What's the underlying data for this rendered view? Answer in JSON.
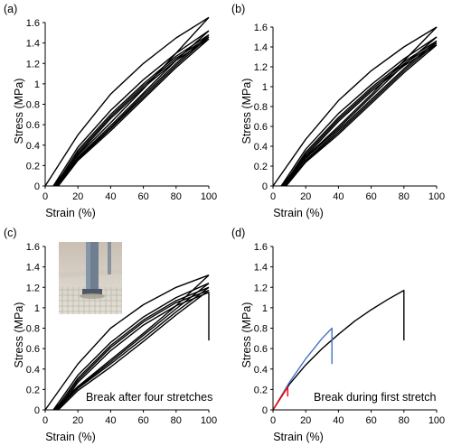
{
  "chart_data": [
    {
      "type": "line",
      "panel_label": "(a)",
      "xlabel": "Strain (%)",
      "ylabel": "Stress (MPa)",
      "xlim": [
        0,
        100
      ],
      "ylim": [
        0,
        1.6
      ],
      "xticks": [
        "0",
        "20",
        "40",
        "60",
        "80",
        "100"
      ],
      "yticks": [
        "0",
        "0.2",
        "0.4",
        "0.6",
        "0.8",
        "1",
        "1.2",
        "1.4",
        "1.6"
      ],
      "grid": false,
      "annotation": "",
      "series": [
        {
          "color": "#000000",
          "x": [
            0,
            20,
            40,
            60,
            80,
            100
          ],
          "y": [
            0,
            0.5,
            0.9,
            1.2,
            1.45,
            1.65
          ]
        },
        {
          "color": "#000000",
          "x": [
            100,
            80,
            60,
            40,
            20,
            5
          ],
          "y": [
            1.65,
            1.3,
            0.95,
            0.62,
            0.3,
            0
          ]
        },
        {
          "color": "#000000",
          "x": [
            5,
            20,
            40,
            60,
            80,
            100
          ],
          "y": [
            0,
            0.38,
            0.74,
            1.04,
            1.3,
            1.52
          ]
        },
        {
          "color": "#000000",
          "x": [
            100,
            80,
            60,
            40,
            20,
            6
          ],
          "y": [
            1.52,
            1.23,
            0.91,
            0.59,
            0.28,
            0
          ]
        },
        {
          "color": "#000000",
          "x": [
            6,
            20,
            40,
            60,
            80,
            100
          ],
          "y": [
            0,
            0.35,
            0.7,
            1.0,
            1.27,
            1.48
          ]
        },
        {
          "color": "#000000",
          "x": [
            100,
            80,
            60,
            40,
            20,
            7
          ],
          "y": [
            1.48,
            1.2,
            0.89,
            0.57,
            0.27,
            0
          ]
        },
        {
          "color": "#000000",
          "x": [
            7,
            20,
            40,
            60,
            80,
            100
          ],
          "y": [
            0,
            0.33,
            0.68,
            0.98,
            1.25,
            1.46
          ]
        },
        {
          "color": "#000000",
          "x": [
            100,
            80,
            60,
            40,
            20,
            7.5
          ],
          "y": [
            1.46,
            1.18,
            0.87,
            0.56,
            0.26,
            0
          ]
        },
        {
          "color": "#000000",
          "x": [
            7.5,
            20,
            40,
            60,
            80,
            100
          ],
          "y": [
            0,
            0.31,
            0.66,
            0.96,
            1.23,
            1.44
          ]
        },
        {
          "color": "#000000",
          "x": [
            100,
            80,
            60,
            40,
            20,
            8
          ],
          "y": [
            1.44,
            1.16,
            0.85,
            0.54,
            0.25,
            0
          ]
        }
      ]
    },
    {
      "type": "line",
      "panel_label": "(b)",
      "xlabel": "Strain (%)",
      "ylabel": "Stress (MPa)",
      "xlim": [
        0,
        100
      ],
      "ylim": [
        0,
        1.6
      ],
      "xticks": [
        "0",
        "20",
        "40",
        "60",
        "80",
        "100"
      ],
      "yticks": [
        "0",
        "0.2",
        "0.4",
        "0.6",
        "0.8",
        "1",
        "1.2",
        "1.4",
        "1.6"
      ],
      "grid": false,
      "annotation": "",
      "series": [
        {
          "color": "#000000",
          "x": [
            0,
            20,
            40,
            60,
            80,
            100
          ],
          "y": [
            0,
            0.47,
            0.86,
            1.16,
            1.4,
            1.6
          ]
        },
        {
          "color": "#000000",
          "x": [
            100,
            80,
            60,
            40,
            20,
            5
          ],
          "y": [
            1.6,
            1.26,
            0.92,
            0.6,
            0.29,
            0
          ]
        },
        {
          "color": "#000000",
          "x": [
            5,
            20,
            40,
            60,
            80,
            100
          ],
          "y": [
            0,
            0.37,
            0.73,
            1.02,
            1.28,
            1.5
          ]
        },
        {
          "color": "#000000",
          "x": [
            100,
            80,
            60,
            40,
            20,
            6
          ],
          "y": [
            1.5,
            1.22,
            0.9,
            0.58,
            0.28,
            0
          ]
        },
        {
          "color": "#000000",
          "x": [
            6,
            20,
            40,
            60,
            80,
            100
          ],
          "y": [
            0,
            0.34,
            0.69,
            0.99,
            1.25,
            1.46
          ]
        },
        {
          "color": "#000000",
          "x": [
            100,
            80,
            60,
            40,
            20,
            7
          ],
          "y": [
            1.46,
            1.18,
            0.87,
            0.56,
            0.26,
            0
          ]
        },
        {
          "color": "#000000",
          "x": [
            7,
            20,
            40,
            60,
            80,
            100
          ],
          "y": [
            0,
            0.32,
            0.67,
            0.97,
            1.23,
            1.44
          ]
        },
        {
          "color": "#000000",
          "x": [
            100,
            80,
            60,
            40,
            20,
            7.5
          ],
          "y": [
            1.44,
            1.16,
            0.85,
            0.54,
            0.25,
            0
          ]
        },
        {
          "color": "#000000",
          "x": [
            7.5,
            20,
            40,
            60,
            80,
            100
          ],
          "y": [
            0,
            0.3,
            0.65,
            0.95,
            1.21,
            1.42
          ]
        },
        {
          "color": "#000000",
          "x": [
            100,
            80,
            60,
            40,
            20,
            8
          ],
          "y": [
            1.42,
            1.14,
            0.83,
            0.52,
            0.24,
            0
          ]
        }
      ]
    },
    {
      "type": "line",
      "panel_label": "(c)",
      "xlabel": "Strain (%)",
      "ylabel": "Stress (MPa)",
      "xlim": [
        0,
        100
      ],
      "ylim": [
        0,
        1.6
      ],
      "xticks": [
        "0",
        "20",
        "40",
        "60",
        "80",
        "100"
      ],
      "yticks": [
        "0",
        "0.2",
        "0.4",
        "0.6",
        "0.8",
        "1",
        "1.2",
        "1.4",
        "1.6"
      ],
      "grid": false,
      "annotation": "Break after four stretches",
      "inset": "photo",
      "series": [
        {
          "color": "#000000",
          "x": [
            0,
            20,
            40,
            60,
            80,
            100
          ],
          "y": [
            0,
            0.45,
            0.8,
            1.03,
            1.2,
            1.32
          ]
        },
        {
          "color": "#000000",
          "x": [
            100,
            80,
            60,
            40,
            20,
            5
          ],
          "y": [
            1.32,
            1.02,
            0.75,
            0.49,
            0.23,
            0
          ]
        },
        {
          "color": "#000000",
          "x": [
            5,
            20,
            40,
            60,
            80,
            100
          ],
          "y": [
            0,
            0.34,
            0.66,
            0.91,
            1.1,
            1.24
          ]
        },
        {
          "color": "#000000",
          "x": [
            100,
            80,
            60,
            40,
            20,
            6
          ],
          "y": [
            1.24,
            0.99,
            0.73,
            0.47,
            0.22,
            0
          ]
        },
        {
          "color": "#000000",
          "x": [
            6,
            20,
            40,
            60,
            80,
            100
          ],
          "y": [
            0,
            0.31,
            0.63,
            0.88,
            1.07,
            1.2
          ]
        },
        {
          "color": "#000000",
          "x": [
            100,
            80,
            60,
            40,
            20,
            7
          ],
          "y": [
            1.2,
            0.96,
            0.7,
            0.45,
            0.21,
            0
          ]
        },
        {
          "color": "#000000",
          "x": [
            7,
            20,
            40,
            60,
            80,
            100
          ],
          "y": [
            0,
            0.29,
            0.61,
            0.86,
            1.05,
            1.17
          ]
        },
        {
          "color": "#000000",
          "x": [
            100,
            80,
            60,
            40,
            20,
            8
          ],
          "y": [
            1.17,
            0.93,
            0.67,
            0.42,
            0.19,
            0
          ]
        },
        {
          "color": "#000000",
          "x": [
            8,
            20,
            40,
            60,
            80,
            100,
            100
          ],
          "y": [
            0,
            0.27,
            0.58,
            0.83,
            1.02,
            1.15,
            0.68
          ]
        }
      ]
    },
    {
      "type": "line",
      "panel_label": "(d)",
      "xlabel": "Strain (%)",
      "ylabel": "Stress (MPa)",
      "xlim": [
        0,
        100
      ],
      "ylim": [
        0,
        1.6
      ],
      "xticks": [
        "0",
        "20",
        "40",
        "60",
        "80",
        "100"
      ],
      "yticks": [
        "0",
        "0.2",
        "0.4",
        "0.6",
        "0.8",
        "1",
        "1.2",
        "1.4",
        "1.6"
      ],
      "grid": false,
      "annotation": "Break during first stretch",
      "series": [
        {
          "color": "#000000",
          "x": [
            0,
            10,
            20,
            30,
            40,
            50,
            60,
            70,
            80,
            80
          ],
          "y": [
            0,
            0.25,
            0.44,
            0.6,
            0.74,
            0.87,
            0.98,
            1.08,
            1.17,
            0.68
          ]
        },
        {
          "color": "#4472C4",
          "x": [
            0,
            10,
            20,
            30,
            36,
            36
          ],
          "y": [
            0,
            0.27,
            0.5,
            0.7,
            0.8,
            0.45
          ]
        },
        {
          "color": "#FF0000",
          "x": [
            0,
            5,
            9,
            9
          ],
          "y": [
            0,
            0.13,
            0.22,
            0.13
          ]
        }
      ]
    }
  ]
}
